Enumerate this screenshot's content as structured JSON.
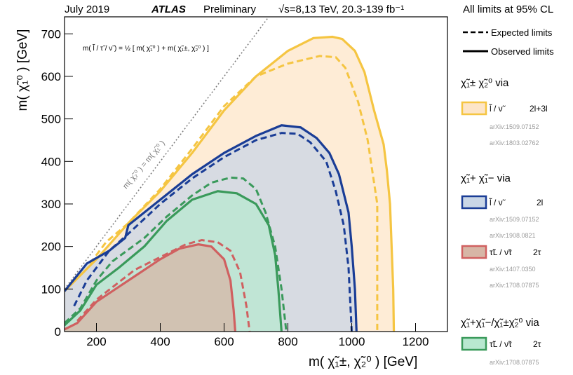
{
  "header": {
    "date": "July 2019",
    "experiment": "ATLAS",
    "status": "Preliminary",
    "energy": "√s=8,13 TeV, 20.3-139 fb⁻¹",
    "cl": "All limits at 95% CL"
  },
  "formula": "m( l̃ / τ̃ / ν̃ ) = ½ [ m( χ̃₁⁰ ) + m( χ̃₁±, χ̃₂⁰ ) ]",
  "diagonal_label": "m( χ̃₂⁰ ) = m( χ̃₁⁰ )",
  "legend": {
    "expected": "Expected limits",
    "observed": "Observed limits",
    "groups": [
      {
        "title": "χ̃₁± χ̃₂⁰  via",
        "entries": [
          {
            "label": "l̃ / ν̃",
            "channel": "2l+3l",
            "series": "wh",
            "refs": [
              "arXiv:1509.07152",
              "arXiv:1803.02762"
            ]
          }
        ]
      },
      {
        "title": "χ̃₁+ χ̃₁−  via",
        "entries": [
          {
            "label": "l̃ / ν̃",
            "channel": "2l",
            "series": "ww",
            "refs": [
              "arXiv:1509.07152",
              "arXiv:1908.0821"
            ]
          },
          {
            "label": "τ̃L / ν̃τ",
            "channel": "2τ",
            "series": "tau8",
            "refs": [
              "arXiv:1407.0350",
              "arXiv:1708.07875"
            ]
          }
        ]
      },
      {
        "title": "χ̃₁+χ̃₁−/χ̃₁±χ̃₂⁰  via",
        "entries": [
          {
            "label": "τ̃L / ν̃τ",
            "channel": "2τ",
            "series": "tau13",
            "refs": [
              "arXiv:1708.07875"
            ]
          }
        ]
      }
    ]
  },
  "chart_data": {
    "type": "area",
    "xlabel": "m( χ̃₁±, χ̃₂⁰ ) [GeV]",
    "ylabel": "m( χ̃₁⁰ ) [GeV]",
    "xlim": [
      100,
      1300
    ],
    "ylim": [
      0,
      740
    ],
    "xticks": [
      200,
      400,
      600,
      800,
      1000,
      1200
    ],
    "yticks": [
      0,
      100,
      200,
      300,
      400,
      500,
      600,
      700
    ],
    "diagonal": {
      "style": "dotted",
      "color": "#777777"
    },
    "series": [
      {
        "id": "wh",
        "color": "#f5c542",
        "fill": "#fde5c8",
        "observed": [
          [
            100,
            95
          ],
          [
            200,
            170
          ],
          [
            300,
            255
          ],
          [
            400,
            330
          ],
          [
            500,
            420
          ],
          [
            600,
            520
          ],
          [
            700,
            600
          ],
          [
            800,
            660
          ],
          [
            880,
            690
          ],
          [
            940,
            693
          ],
          [
            970,
            688
          ],
          [
            1010,
            660
          ],
          [
            1040,
            610
          ],
          [
            1070,
            520
          ],
          [
            1100,
            440
          ],
          [
            1110,
            380
          ],
          [
            1120,
            300
          ],
          [
            1125,
            200
          ],
          [
            1130,
            100
          ],
          [
            1132,
            0
          ]
        ],
        "expected": [
          [
            180,
            160
          ],
          [
            230,
            210
          ],
          [
            300,
            255
          ],
          [
            400,
            335
          ],
          [
            500,
            430
          ],
          [
            600,
            530
          ],
          [
            700,
            600
          ],
          [
            800,
            630
          ],
          [
            900,
            648
          ],
          [
            950,
            645
          ],
          [
            980,
            620
          ],
          [
            1020,
            540
          ],
          [
            1050,
            450
          ],
          [
            1080,
            300
          ],
          [
            1080,
            0
          ]
        ]
      },
      {
        "id": "ww",
        "color": "#1a3d96",
        "fill": "#c9d6e6",
        "observed": [
          [
            100,
            95
          ],
          [
            170,
            160
          ],
          [
            240,
            190
          ],
          [
            290,
            220
          ],
          [
            300,
            250
          ],
          [
            400,
            310
          ],
          [
            500,
            370
          ],
          [
            600,
            420
          ],
          [
            700,
            460
          ],
          [
            780,
            485
          ],
          [
            840,
            480
          ],
          [
            890,
            455
          ],
          [
            930,
            420
          ],
          [
            960,
            370
          ],
          [
            990,
            280
          ],
          [
            1000,
            200
          ],
          [
            1010,
            100
          ],
          [
            1015,
            0
          ]
        ],
        "expected": [
          [
            130,
            60
          ],
          [
            170,
            120
          ],
          [
            240,
            190
          ],
          [
            300,
            230
          ],
          [
            400,
            300
          ],
          [
            500,
            360
          ],
          [
            600,
            410
          ],
          [
            700,
            450
          ],
          [
            780,
            467
          ],
          [
            830,
            465
          ],
          [
            870,
            445
          ],
          [
            920,
            400
          ],
          [
            950,
            330
          ],
          [
            975,
            250
          ],
          [
            990,
            150
          ],
          [
            1000,
            0
          ]
        ]
      },
      {
        "id": "tau13",
        "color": "#3a9a5b",
        "fill": "#b8e8d0",
        "observed": [
          [
            100,
            15
          ],
          [
            150,
            50
          ],
          [
            200,
            110
          ],
          [
            270,
            150
          ],
          [
            350,
            200
          ],
          [
            420,
            260
          ],
          [
            500,
            310
          ],
          [
            580,
            330
          ],
          [
            640,
            325
          ],
          [
            700,
            300
          ],
          [
            740,
            250
          ],
          [
            760,
            180
          ],
          [
            770,
            100
          ],
          [
            780,
            0
          ]
        ],
        "expected": [
          [
            100,
            20
          ],
          [
            150,
            55
          ],
          [
            200,
            120
          ],
          [
            250,
            165
          ],
          [
            350,
            220
          ],
          [
            420,
            270
          ],
          [
            500,
            320
          ],
          [
            560,
            350
          ],
          [
            620,
            362
          ],
          [
            660,
            360
          ],
          [
            700,
            335
          ],
          [
            730,
            280
          ],
          [
            760,
            200
          ],
          [
            780,
            100
          ],
          [
            795,
            0
          ]
        ]
      },
      {
        "id": "tau8",
        "color": "#d06060",
        "fill": "#d7b6a6",
        "observed": [
          [
            100,
            5
          ],
          [
            140,
            20
          ],
          [
            200,
            70
          ],
          [
            260,
            100
          ],
          [
            320,
            130
          ],
          [
            400,
            170
          ],
          [
            460,
            195
          ],
          [
            520,
            205
          ],
          [
            560,
            200
          ],
          [
            600,
            170
          ],
          [
            620,
            120
          ],
          [
            630,
            50
          ],
          [
            635,
            0
          ]
        ],
        "expected": [
          [
            140,
            25
          ],
          [
            200,
            75
          ],
          [
            260,
            110
          ],
          [
            320,
            145
          ],
          [
            400,
            175
          ],
          [
            480,
            205
          ],
          [
            530,
            215
          ],
          [
            580,
            210
          ],
          [
            620,
            190
          ],
          [
            650,
            140
          ],
          [
            670,
            60
          ],
          [
            680,
            0
          ]
        ]
      }
    ]
  }
}
